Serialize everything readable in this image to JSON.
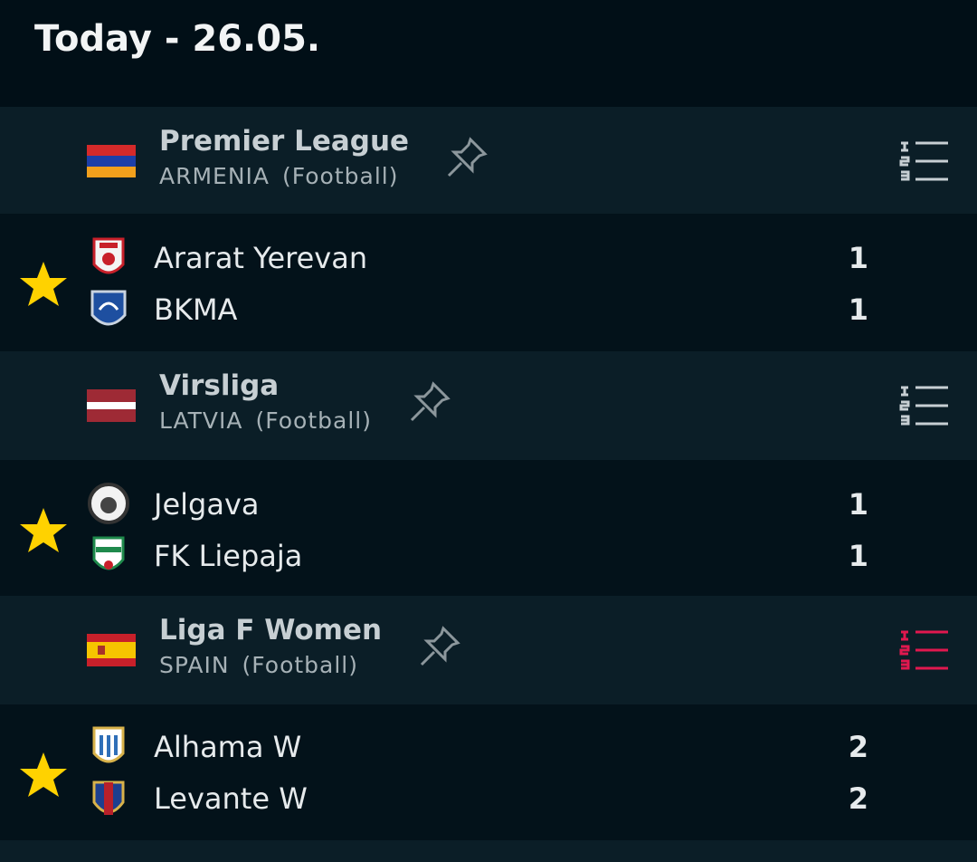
{
  "header": {
    "title": "Today - 26.05."
  },
  "leagues": [
    {
      "name": "Premier League",
      "country": "ARMENIA",
      "sport": "(Football)",
      "match": {
        "home": {
          "name": "Ararat Yerevan",
          "score": 1
        },
        "away": {
          "name": "BKMA",
          "score": 1
        }
      }
    },
    {
      "name": "Virsliga",
      "country": "LATVIA",
      "sport": "(Football)",
      "match": {
        "home": {
          "name": "Jelgava",
          "score": 1
        },
        "away": {
          "name": "FK Liepaja",
          "score": 1
        }
      }
    },
    {
      "name": "Liga F Women",
      "country": "SPAIN",
      "sport": "(Football)",
      "match": {
        "home": {
          "name": "Alhama W",
          "score": 2
        },
        "away": {
          "name": "Levante W",
          "score": 2
        }
      }
    }
  ]
}
